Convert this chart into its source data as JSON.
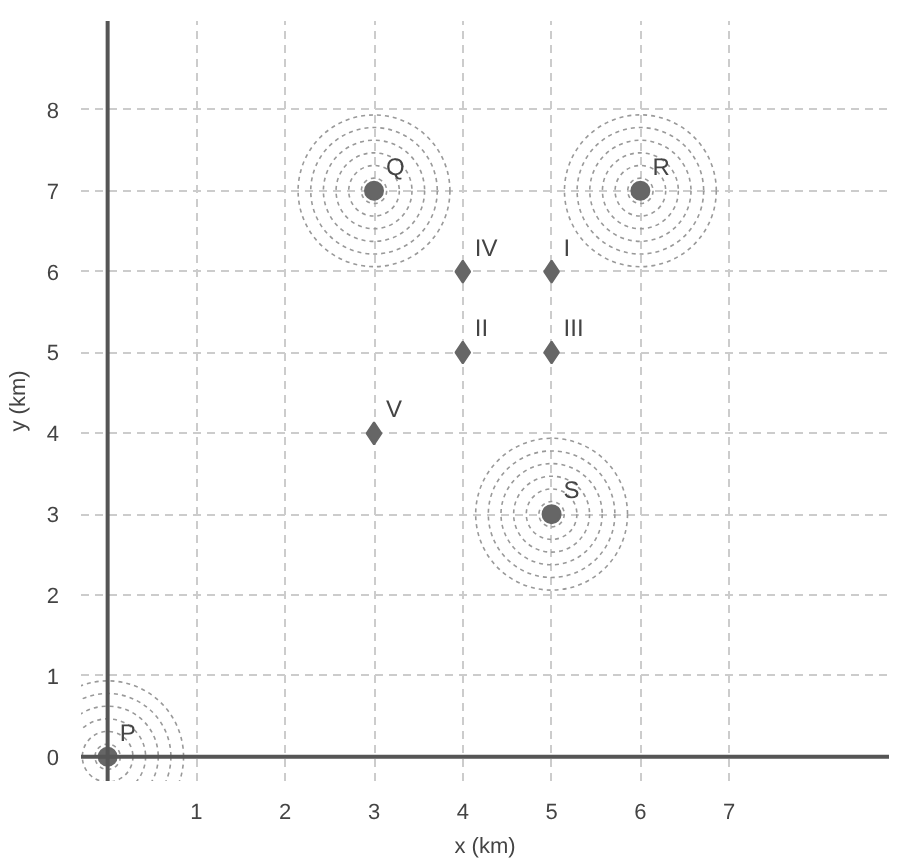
{
  "chart_data": {
    "type": "scatter",
    "xlabel": "x (km)",
    "ylabel": "y (km)",
    "xlim": [
      -0.3,
      8.8
    ],
    "ylim": [
      -0.3,
      9.1
    ],
    "xticks": [
      1,
      2,
      3,
      4,
      5,
      6,
      7
    ],
    "yticks": [
      0,
      1,
      2,
      3,
      4,
      5,
      6,
      7,
      8
    ],
    "grid": true,
    "series": [
      {
        "color": "#666666",
        "marker": "circle",
        "x": [
          0,
          3,
          6,
          5
        ],
        "values": [
          0,
          7,
          7,
          3
        ]
      },
      {
        "color": "#666666",
        "marker": "diamond",
        "x": [
          5,
          4,
          5,
          4,
          3
        ],
        "values": [
          6,
          5,
          5,
          6,
          4
        ]
      }
    ],
    "annotations": [
      {
        "text": "P",
        "x": 0,
        "y": 0
      },
      {
        "text": "Q",
        "x": 3,
        "y": 7
      },
      {
        "text": "R",
        "x": 6,
        "y": 7
      },
      {
        "text": "S",
        "x": 5,
        "y": 3
      },
      {
        "text": "I",
        "x": 5,
        "y": 6
      },
      {
        "text": "II",
        "x": 4,
        "y": 5
      },
      {
        "text": "III",
        "x": 5,
        "y": 5
      },
      {
        "text": "IV",
        "x": 4,
        "y": 6
      },
      {
        "text": "V",
        "x": 3,
        "y": 4
      }
    ]
  }
}
